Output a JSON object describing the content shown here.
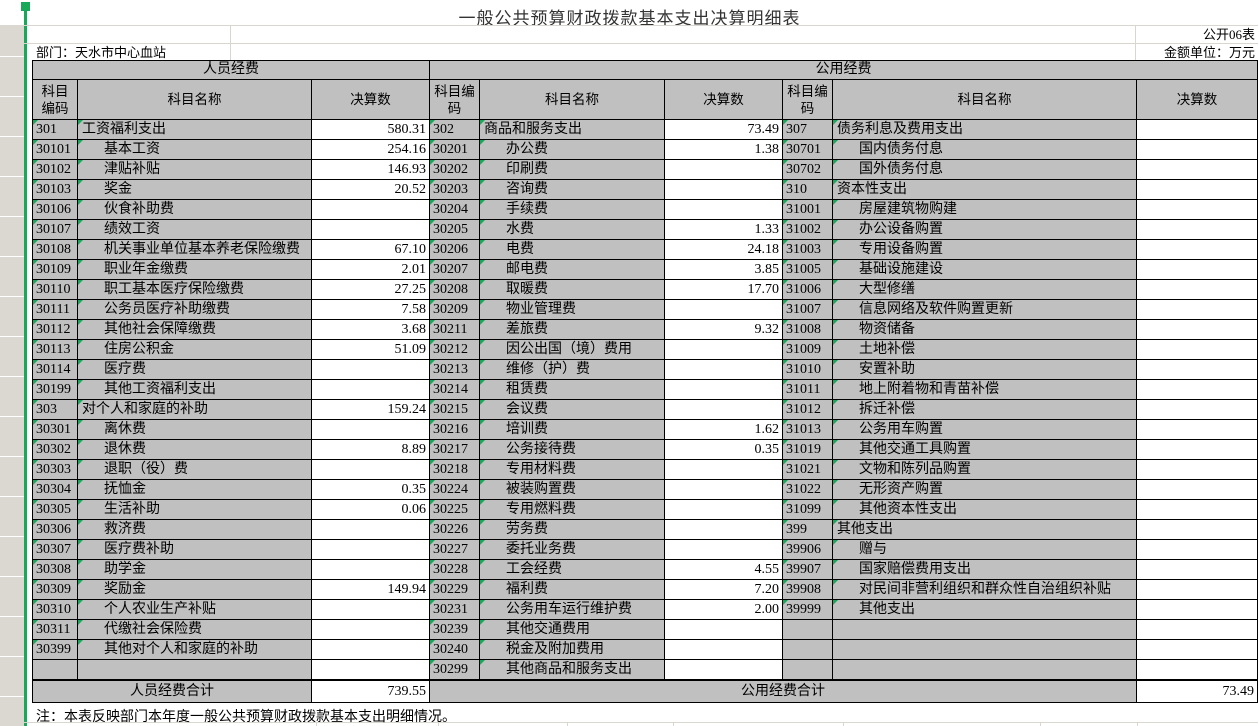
{
  "title": "一般公共预算财政拨款基本支出决算明细表",
  "meta": {
    "form_code": "公开06表",
    "department": "部门：天水市中心血站",
    "unit": "金额单位：万元"
  },
  "table": {
    "group_headers": {
      "personnel": "人员经费",
      "public": "公用经费"
    },
    "columns": {
      "code": "科目编码",
      "name": "科目名称",
      "value": "决算数"
    },
    "rows": [
      [
        [
          "301",
          "工资福利支出",
          "580.31"
        ],
        [
          "302",
          "商品和服务支出",
          "73.49"
        ],
        [
          "307",
          "债务利息及费用支出",
          ""
        ]
      ],
      [
        [
          "30101",
          "基本工资",
          "254.16"
        ],
        [
          "30201",
          "办公费",
          "1.38"
        ],
        [
          "30701",
          "国内债务付息",
          ""
        ]
      ],
      [
        [
          "30102",
          "津贴补贴",
          "146.93"
        ],
        [
          "30202",
          "印刷费",
          ""
        ],
        [
          "30702",
          "国外债务付息",
          ""
        ]
      ],
      [
        [
          "30103",
          "奖金",
          "20.52"
        ],
        [
          "30203",
          "咨询费",
          ""
        ],
        [
          "310",
          "资本性支出",
          ""
        ]
      ],
      [
        [
          "30106",
          "伙食补助费",
          ""
        ],
        [
          "30204",
          "手续费",
          ""
        ],
        [
          "31001",
          "房屋建筑物购建",
          ""
        ]
      ],
      [
        [
          "30107",
          "绩效工资",
          ""
        ],
        [
          "30205",
          "水费",
          "1.33"
        ],
        [
          "31002",
          "办公设备购置",
          ""
        ]
      ],
      [
        [
          "30108",
          "机关事业单位基本养老保险缴费",
          "67.10"
        ],
        [
          "30206",
          "电费",
          "24.18"
        ],
        [
          "31003",
          "专用设备购置",
          ""
        ]
      ],
      [
        [
          "30109",
          "职业年金缴费",
          "2.01"
        ],
        [
          "30207",
          "邮电费",
          "3.85"
        ],
        [
          "31005",
          "基础设施建设",
          ""
        ]
      ],
      [
        [
          "30110",
          "职工基本医疗保险缴费",
          "27.25"
        ],
        [
          "30208",
          "取暖费",
          "17.70"
        ],
        [
          "31006",
          "大型修缮",
          ""
        ]
      ],
      [
        [
          "30111",
          "公务员医疗补助缴费",
          "7.58"
        ],
        [
          "30209",
          "物业管理费",
          ""
        ],
        [
          "31007",
          "信息网络及软件购置更新",
          ""
        ]
      ],
      [
        [
          "30112",
          "其他社会保障缴费",
          "3.68"
        ],
        [
          "30211",
          "差旅费",
          "9.32"
        ],
        [
          "31008",
          "物资储备",
          ""
        ]
      ],
      [
        [
          "30113",
          "住房公积金",
          "51.09"
        ],
        [
          "30212",
          "因公出国（境）费用",
          ""
        ],
        [
          "31009",
          "土地补偿",
          ""
        ]
      ],
      [
        [
          "30114",
          "医疗费",
          ""
        ],
        [
          "30213",
          "维修（护）费",
          ""
        ],
        [
          "31010",
          "安置补助",
          ""
        ]
      ],
      [
        [
          "30199",
          "其他工资福利支出",
          ""
        ],
        [
          "30214",
          "租赁费",
          ""
        ],
        [
          "31011",
          "地上附着物和青苗补偿",
          ""
        ]
      ],
      [
        [
          "303",
          "对个人和家庭的补助",
          "159.24"
        ],
        [
          "30215",
          "会议费",
          ""
        ],
        [
          "31012",
          "拆迁补偿",
          ""
        ]
      ],
      [
        [
          "30301",
          "离休费",
          ""
        ],
        [
          "30216",
          "培训费",
          "1.62"
        ],
        [
          "31013",
          "公务用车购置",
          ""
        ]
      ],
      [
        [
          "30302",
          "退休费",
          "8.89"
        ],
        [
          "30217",
          "公务接待费",
          "0.35"
        ],
        [
          "31019",
          "其他交通工具购置",
          ""
        ]
      ],
      [
        [
          "30303",
          "退职（役）费",
          ""
        ],
        [
          "30218",
          "专用材料费",
          ""
        ],
        [
          "31021",
          "文物和陈列品购置",
          ""
        ]
      ],
      [
        [
          "30304",
          "抚恤金",
          "0.35"
        ],
        [
          "30224",
          "被装购置费",
          ""
        ],
        [
          "31022",
          "无形资产购置",
          ""
        ]
      ],
      [
        [
          "30305",
          "生活补助",
          "0.06"
        ],
        [
          "30225",
          "专用燃料费",
          ""
        ],
        [
          "31099",
          "其他资本性支出",
          ""
        ]
      ],
      [
        [
          "30306",
          "救济费",
          ""
        ],
        [
          "30226",
          "劳务费",
          ""
        ],
        [
          "399",
          "其他支出",
          ""
        ]
      ],
      [
        [
          "30307",
          "医疗费补助",
          ""
        ],
        [
          "30227",
          "委托业务费",
          ""
        ],
        [
          "39906",
          "赠与",
          ""
        ]
      ],
      [
        [
          "30308",
          "助学金",
          ""
        ],
        [
          "30228",
          "工会经费",
          "4.55"
        ],
        [
          "39907",
          "国家赔偿费用支出",
          ""
        ]
      ],
      [
        [
          "30309",
          "奖励金",
          "149.94"
        ],
        [
          "30229",
          "福利费",
          "7.20"
        ],
        [
          "39908",
          "对民间非营利组织和群众性自治组织补贴",
          ""
        ]
      ],
      [
        [
          "30310",
          "个人农业生产补贴",
          ""
        ],
        [
          "30231",
          "公务用车运行维护费",
          "2.00"
        ],
        [
          "39999",
          "其他支出",
          ""
        ]
      ],
      [
        [
          "30311",
          "代缴社会保险费",
          ""
        ],
        [
          "30239",
          "其他交通费用",
          ""
        ],
        [
          "",
          "",
          ""
        ]
      ],
      [
        [
          "30399",
          "其他对个人和家庭的补助",
          ""
        ],
        [
          "30240",
          "税金及附加费用",
          ""
        ],
        [
          "",
          "",
          ""
        ]
      ],
      [
        [
          "",
          "",
          ""
        ],
        [
          "30299",
          "其他商品和服务支出",
          ""
        ],
        [
          "",
          "",
          ""
        ]
      ]
    ],
    "totals": {
      "personnel_label": "人员经费合计",
      "personnel_value": "739.55",
      "public_label": "公用经费合计",
      "public_value": "73.49"
    }
  },
  "note": "注：本表反映部门本年度一般公共预算财政拨款基本支出明细情况。",
  "colors": {
    "cell_gray": "#c0c0c0",
    "accent_green": "#18a85a",
    "gridline": "#d9d6d0"
  }
}
